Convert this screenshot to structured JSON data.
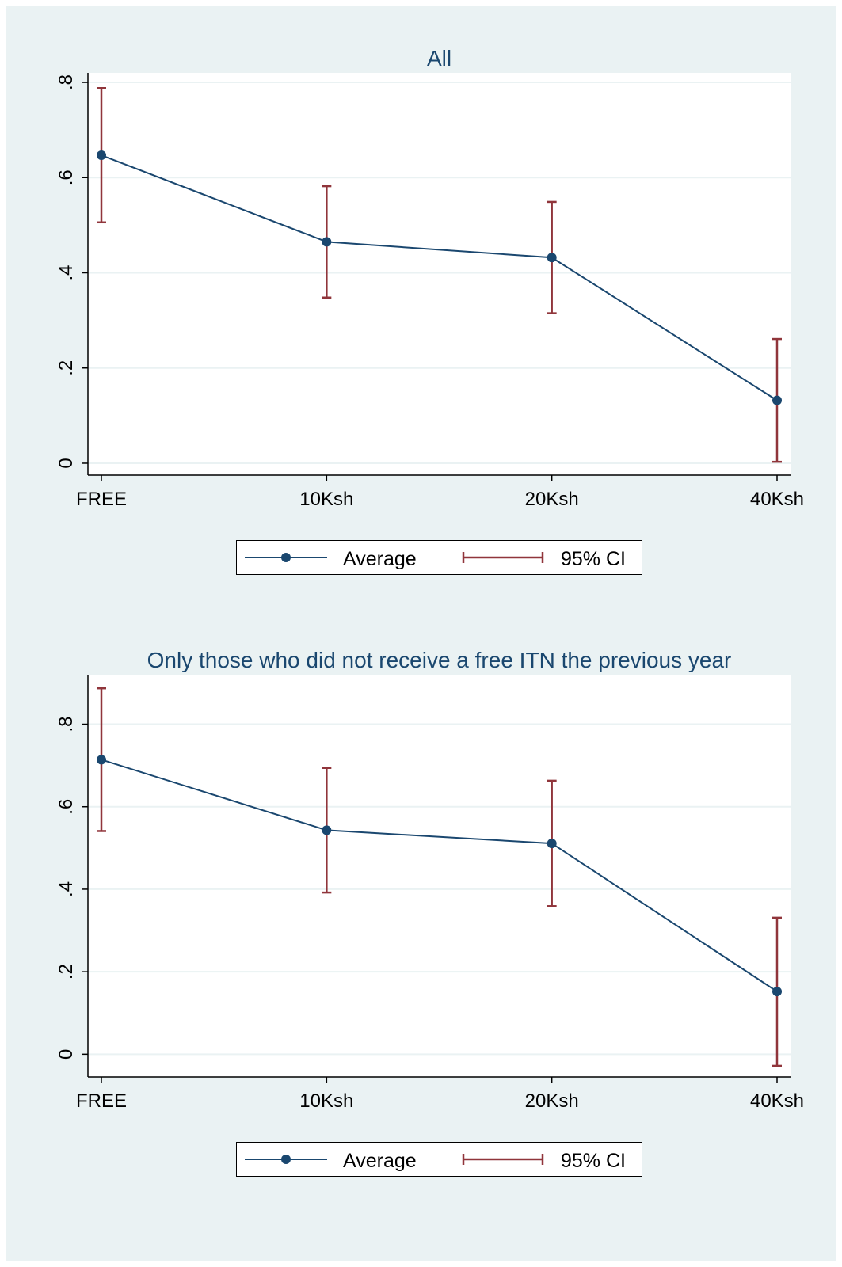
{
  "colors": {
    "background": "#eaf2f3",
    "plot_area": "#ffffff",
    "grid": "#eaf2f3",
    "series_line": "#1a476f",
    "ci": "#90353b",
    "title": "#1a476f",
    "axis": "#000000"
  },
  "legend_labels": [
    "Average",
    "95% CI"
  ],
  "chart_data": [
    {
      "type": "line",
      "title": "All",
      "xlabel": "",
      "ylabel": "",
      "categories": [
        "FREE",
        "10Ksh",
        "20Ksh",
        "40Ksh"
      ],
      "ylim": [
        -0.025,
        0.82
      ],
      "yticks": [
        0,
        0.2,
        0.4,
        0.6,
        0.8
      ],
      "ytick_labels": [
        "0",
        ".2",
        ".4",
        ".6",
        ".8"
      ],
      "grid": true,
      "legend_position": "bottom",
      "series": [
        {
          "name": "Average",
          "values": [
            0.647,
            0.465,
            0.432,
            0.132
          ]
        },
        {
          "name": "95% CI",
          "lower": [
            0.506,
            0.348,
            0.315,
            0.003
          ],
          "upper": [
            0.788,
            0.582,
            0.549,
            0.261
          ]
        }
      ]
    },
    {
      "type": "line",
      "title": "Only those who did not receive a free ITN the previous year",
      "xlabel": "",
      "ylabel": "",
      "categories": [
        "FREE",
        "10Ksh",
        "20Ksh",
        "40Ksh"
      ],
      "ylim": [
        -0.055,
        0.92
      ],
      "yticks": [
        0,
        0.2,
        0.4,
        0.6,
        0.8
      ],
      "ytick_labels": [
        "0",
        ".2",
        ".4",
        ".6",
        ".8"
      ],
      "grid": true,
      "legend_position": "bottom",
      "series": [
        {
          "name": "Average",
          "values": [
            0.714,
            0.543,
            0.511,
            0.152
          ]
        },
        {
          "name": "95% CI",
          "lower": [
            0.541,
            0.392,
            0.359,
            -0.028
          ],
          "upper": [
            0.887,
            0.694,
            0.663,
            0.331
          ]
        }
      ]
    }
  ]
}
